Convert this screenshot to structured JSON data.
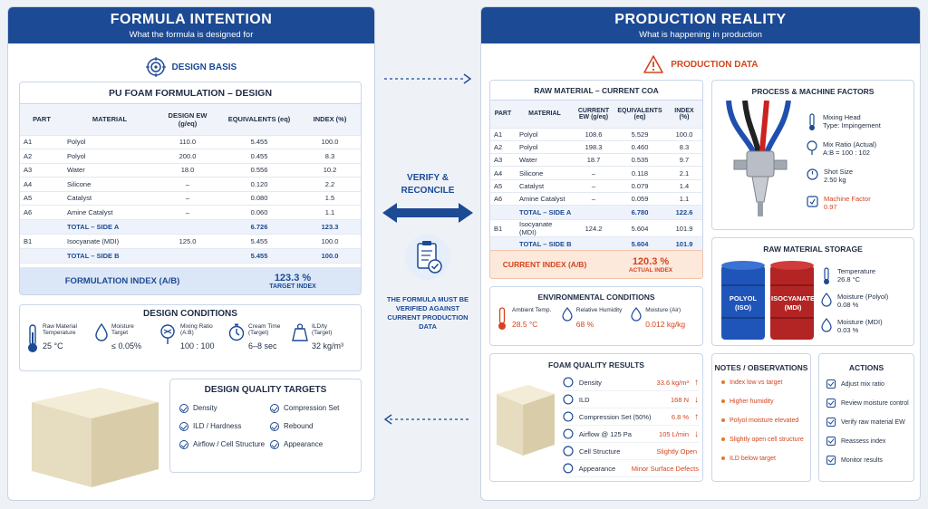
{
  "left": {
    "title": "FORMULA INTENTION",
    "subtitle": "What the formula is designed for",
    "design_basis": "DESIGN BASIS",
    "table_title": "PU FOAM FORMULATION – DESIGN",
    "headers": [
      "PART",
      "MATERIAL",
      "DESIGN EW (g/eq)",
      "EQUIVALENTS (eq)",
      "INDEX (%)"
    ],
    "rows": [
      {
        "part": "A1",
        "material": "Polyol",
        "ew": "110.0",
        "eq": "5.455",
        "index": "100.0"
      },
      {
        "part": "A2",
        "material": "Polyol",
        "ew": "200.0",
        "eq": "0.455",
        "index": "8.3"
      },
      {
        "part": "A3",
        "material": "Water",
        "ew": "18.0",
        "eq": "0.556",
        "index": "10.2"
      },
      {
        "part": "A4",
        "material": "Silicone",
        "ew": "–",
        "eq": "0.120",
        "index": "2.2"
      },
      {
        "part": "A5",
        "material": "Catalyst",
        "ew": "–",
        "eq": "0.080",
        "index": "1.5"
      },
      {
        "part": "A6",
        "material": "Amine Catalyst",
        "ew": "–",
        "eq": "0.060",
        "index": "1.1"
      }
    ],
    "total_a": {
      "label": "TOTAL – SIDE A",
      "eq": "6.726",
      "index": "123.3"
    },
    "row_b": {
      "part": "B1",
      "material": "Isocyanate (MDI)",
      "ew": "125.0",
      "eq": "5.455",
      "index": "100.0"
    },
    "total_b": {
      "label": "TOTAL – SIDE B",
      "eq": "5.455",
      "index": "100.0"
    },
    "formulation_index_label": "FORMULATION INDEX (A/B)",
    "formulation_index_value": "123.3 %",
    "target_index_label": "TARGET INDEX",
    "conditions_title": "DESIGN CONDITIONS",
    "conditions": [
      {
        "label": "Raw Material Temperature",
        "value": "25 °C"
      },
      {
        "label": "Moisture Target",
        "value": "≤ 0.05%"
      },
      {
        "label": "Mixing Ratio (A:B)",
        "value": "100 : 100"
      },
      {
        "label": "Cream Time (Target)",
        "value": "6–8 sec"
      },
      {
        "label": "ILD/ty (Target)",
        "value": "32 kg/m³"
      }
    ],
    "quality_title": "DESIGN QUALITY TARGETS",
    "quality": [
      "Density",
      "Compression Set",
      "ILD / Hardness",
      "Rebound",
      "Airflow / Cell Structure",
      "Appearance"
    ]
  },
  "center": {
    "verify_label": "VERIFY & RECONCILE",
    "note": "THE FORMULA MUST BE VERIFIED AGAINST CURRENT PRODUCTION DATA"
  },
  "right": {
    "title": "PRODUCTION REALITY",
    "subtitle": "What is happening in production",
    "production_data": "PRODUCTION DATA",
    "table_title": "RAW MATERIAL – CURRENT COA",
    "headers": [
      "PART",
      "MATERIAL",
      "CURRENT EW (g/eq)",
      "EQUIVALENTS (eq)",
      "INDEX (%)"
    ],
    "rows": [
      {
        "part": "A1",
        "material": "Polyol",
        "ew": "108.6",
        "eq": "5.529",
        "index": "100.0"
      },
      {
        "part": "A2",
        "material": "Polyol",
        "ew": "198.3",
        "eq": "0.460",
        "index": "8.3"
      },
      {
        "part": "A3",
        "material": "Water",
        "ew": "18.7",
        "eq": "0.535",
        "index": "9.7"
      },
      {
        "part": "A4",
        "material": "Silicone",
        "ew": "–",
        "eq": "0.118",
        "index": "2.1"
      },
      {
        "part": "A5",
        "material": "Catalyst",
        "ew": "–",
        "eq": "0.079",
        "index": "1.4"
      },
      {
        "part": "A6",
        "material": "Amine Catalyst",
        "ew": "–",
        "eq": "0.059",
        "index": "1.1"
      }
    ],
    "total_a": {
      "label": "TOTAL – SIDE A",
      "eq": "6.780",
      "index": "122.6"
    },
    "row_b": {
      "part": "B1",
      "material": "Isocyanate (MDI)",
      "ew": "124.2",
      "eq": "5.604",
      "index": "101.9"
    },
    "total_b": {
      "label": "TOTAL – SIDE B",
      "eq": "5.604",
      "index": "101.9"
    },
    "current_index_label": "CURRENT INDEX (A/B)",
    "current_index_value": "120.3 %",
    "actual_index_label": "ACTUAL INDEX",
    "process_title": "PROCESS & MACHINE FACTORS",
    "process": [
      {
        "label": "Mixing Head",
        "value": "Type: Impingement"
      },
      {
        "label": "Mix Ratio (Actual)",
        "value": "A:B = 100 : 102"
      },
      {
        "label": "Shot Size",
        "value": "2.50 kg"
      },
      {
        "label": "Machine Factor",
        "value": "0.97"
      }
    ],
    "storage_title": "RAW MATERIAL STORAGE",
    "drum_polyol": "POLYOL (ISO)",
    "drum_iso": "ISOCYANATE (MDI)",
    "storage": [
      {
        "label": "Temperature",
        "value": "26.8 °C"
      },
      {
        "label": "Moisture (Polyol)",
        "value": "0.08 %"
      },
      {
        "label": "Moisture (MDI)",
        "value": "0.03 %"
      }
    ],
    "env_title": "ENVIRONMENTAL CONDITIONS",
    "env": [
      {
        "label": "Ambient Temp.",
        "value": "28.5 °C"
      },
      {
        "label": "Relative Humidity",
        "value": "68 %"
      },
      {
        "label": "Moisture (Air)",
        "value": "0.012 kg/kg"
      }
    ],
    "foam_title": "FOAM QUALITY RESULTS",
    "foam": [
      {
        "label": "Density",
        "value": "33.6 kg/m³",
        "trend": "↑"
      },
      {
        "label": "ILD",
        "value": "168 N",
        "trend": "↓"
      },
      {
        "label": "Compression Set (50%)",
        "value": "6.8 %",
        "trend": "↑"
      },
      {
        "label": "Airflow @ 125 Pa",
        "value": "105 L/min",
        "trend": "↓"
      },
      {
        "label": "Cell Structure",
        "value": "Slightly Open",
        "trend": ""
      },
      {
        "label": "Appearance",
        "value": "Minor Surface Defects",
        "trend": ""
      }
    ],
    "notes_title": "NOTES / OBSERVATIONS",
    "notes": [
      "Index low vs target",
      "Higher humidity",
      "Polyol moisture elevated",
      "Slightly open cell structure",
      "ILD below target"
    ],
    "actions_title": "ACTIONS",
    "actions": [
      "Adjust mix ratio",
      "Review moisture control",
      "Verify raw material EW",
      "Reassess index",
      "Monitor results"
    ]
  }
}
